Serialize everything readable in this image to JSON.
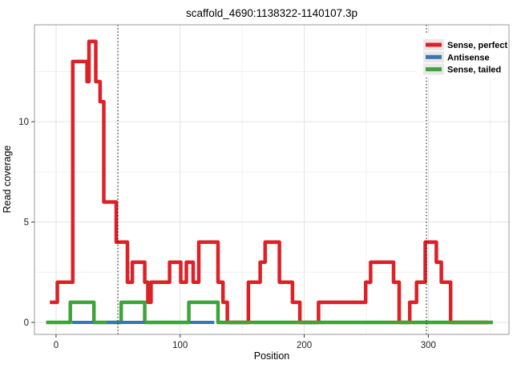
{
  "chart_data": {
    "type": "line",
    "title": "scaffold_4690:1138322-1140107.3p",
    "xlabel": "Position",
    "ylabel": "Read coverage",
    "xlim": [
      -17.4,
      365
    ],
    "ylim": [
      -0.6,
      14.83
    ],
    "grid": "on",
    "x_ticks": [
      0,
      100,
      200,
      300
    ],
    "x_tick_labels": [
      "0",
      "100",
      "200",
      "300"
    ],
    "x_minor_gridlines": [
      50,
      150,
      250,
      350
    ],
    "y_ticks": [
      0,
      5,
      10
    ],
    "y_tick_labels": [
      "0",
      "5",
      "10"
    ],
    "y_minor_gridlines": [
      2.5,
      7.5,
      12.5
    ],
    "vertical_dotted_lines": [
      49.8,
      298.5
    ],
    "series": [
      {
        "name": "Sense, perfect",
        "color": "#de2027",
        "stroke_width": 4.5,
        "steps": [
          [
            -5,
            1
          ],
          [
            1,
            2
          ],
          [
            13.5,
            13
          ],
          [
            25,
            12
          ],
          [
            26.5,
            14
          ],
          [
            32,
            12
          ],
          [
            35.5,
            11
          ],
          [
            38.5,
            6
          ],
          [
            48.5,
            4
          ],
          [
            57.5,
            2
          ],
          [
            61.5,
            3
          ],
          [
            71.5,
            2
          ],
          [
            74,
            1
          ],
          [
            76.5,
            2
          ],
          [
            91.5,
            3
          ],
          [
            100.5,
            2
          ],
          [
            105,
            3
          ],
          [
            110.5,
            2
          ],
          [
            115,
            4
          ],
          [
            130.5,
            2
          ],
          [
            134.5,
            1
          ],
          [
            138,
            0
          ],
          [
            155,
            2
          ],
          [
            164.5,
            3
          ],
          [
            168.5,
            4
          ],
          [
            180,
            2
          ],
          [
            190.5,
            1
          ],
          [
            196.5,
            0
          ],
          [
            211.5,
            1
          ],
          [
            249.5,
            2
          ],
          [
            253.5,
            3
          ],
          [
            272,
            2
          ],
          [
            276.5,
            0
          ],
          [
            285,
            1
          ],
          [
            290.5,
            2
          ],
          [
            297.5,
            4
          ],
          [
            306.5,
            3
          ],
          [
            310.5,
            2
          ],
          [
            318,
            0
          ],
          [
            348,
            0
          ]
        ]
      },
      {
        "name": "Sense, tailed",
        "color": "#3fa33c",
        "stroke_width": 4.5,
        "steps": [
          [
            -8,
            0
          ],
          [
            11.5,
            1
          ],
          [
            30.5,
            0
          ],
          [
            52.5,
            1
          ],
          [
            71.5,
            0
          ],
          [
            107,
            1
          ],
          [
            130.5,
            0
          ],
          [
            352,
            0
          ]
        ]
      },
      {
        "name": "Antisense",
        "color": "#3a76ad",
        "stroke_width": 4,
        "value": 0,
        "segments": [
          [
            13,
            30
          ],
          [
            41,
            71.5
          ],
          [
            108,
            127.5
          ]
        ]
      }
    ],
    "legend": {
      "position": "top-right-inside",
      "entries": [
        {
          "label": "Sense, perfect",
          "color": "#de2027"
        },
        {
          "label": "Antisense",
          "color": "#3a76ad"
        },
        {
          "label": "Sense, tailed",
          "color": "#3fa33c"
        }
      ]
    },
    "colors": {
      "panel_border": "#999999",
      "major_grid": "#e3e3e3",
      "minor_grid": "#f1f1f1",
      "vline": "#000000",
      "tick": "#333333",
      "legend_key_bg": "#e8e8e8"
    }
  }
}
